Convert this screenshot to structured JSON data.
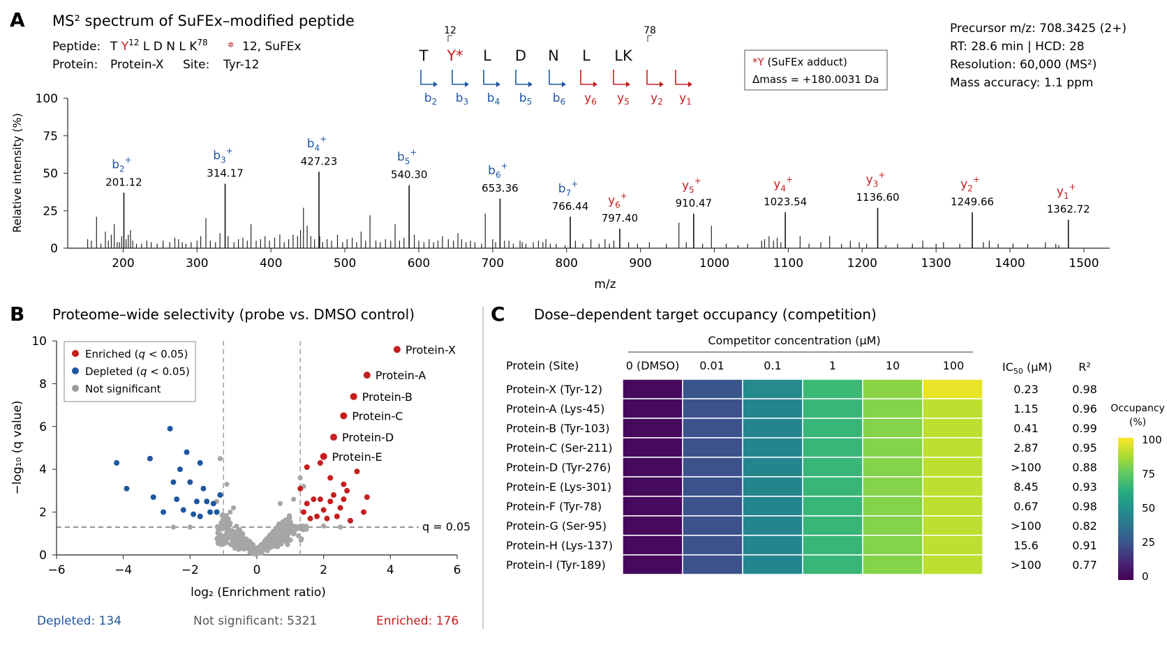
{
  "colors": {
    "blue": "#1f56a0",
    "red": "#c41e1e",
    "gray": "#a6a6a6",
    "black": "#111111"
  },
  "panelA": {
    "letter": "A",
    "title": "MS² spectrum of SuFEx–modified peptide",
    "peptide_label": "Peptide:",
    "peptide_pre": "T ",
    "peptide_mod": "Y",
    "peptide_mod_sup": "12",
    "peptide_post": " L D N L K",
    "peptide_k_sup": "78",
    "peptide_tail": "12,  SuFEx",
    "protein_label": "Protein:",
    "protein_value": "Protein-X",
    "site_label": "Site:",
    "site_value": "Tyr-12",
    "sequence": [
      "T",
      "Y*",
      "L",
      "D",
      "N",
      "L",
      "LK"
    ],
    "seq_mark_12": "12",
    "seq_mark_78": "78",
    "fragments": [
      {
        "ion": "b",
        "sub": "2",
        "type": "b"
      },
      {
        "ion": "b",
        "sub": "3",
        "type": "b"
      },
      {
        "ion": "b",
        "sub": "4",
        "type": "b"
      },
      {
        "ion": "b",
        "sub": "5",
        "type": "b"
      },
      {
        "ion": "b",
        "sub": "6",
        "type": "b"
      },
      {
        "ion": "y",
        "sub": "6",
        "type": "y"
      },
      {
        "ion": "y",
        "sub": "5",
        "type": "y"
      },
      {
        "ion": "y",
        "sub": "2",
        "type": "y"
      },
      {
        "ion": "y",
        "sub": "1",
        "type": "y"
      }
    ],
    "adduct_line1": "*Y (SuFEx adduct)",
    "adduct_line2": "Δmass = +180.0031 Da",
    "meta": {
      "precursor": "Precursor m/z: 708.3425 (2+)",
      "rt": "RT: 28.6 min   |   HCD: 28",
      "resolution": "Resolution: 60,000 (MS²)",
      "accuracy": "Mass accuracy:  1.1 ppm"
    }
  },
  "panelB": {
    "letter": "B",
    "title": "Proteome–wide selectivity (probe vs. DMSO control)",
    "legend": [
      "Enriched (q < 0.05)",
      "Depleted (q < 0.05)",
      "Not significant"
    ],
    "q_label": "q = 0.05",
    "depleted_count": "Depleted: 134",
    "ns_count": "Not significant: 5321",
    "enriched_count": "Enriched: 176"
  },
  "panelC": {
    "letter": "C",
    "title": "Dose–dependent target occupancy (competition)",
    "conc_title": "Competitor concentration (µM)",
    "col_header": "Protein (Site)",
    "concentrations": [
      "0 (DMSO)",
      "0.01",
      "0.1",
      "1",
      "10",
      "100"
    ],
    "ic50_header": "IC",
    "ic50_sub": "50",
    "ic50_unit": " (µM)",
    "r2_header": "R²",
    "colorbar_title1": "Occupancy",
    "colorbar_title2": "(%)",
    "colorbar_ticks": [
      "100",
      "75",
      "50",
      "25",
      "0"
    ]
  },
  "chart_data": [
    {
      "type": "bar",
      "title": "MS² spectrum of SuFEx–modified peptide",
      "xlabel": "m/z",
      "ylabel": "Relative intensity (%)",
      "xlim": [
        125,
        1535
      ],
      "ylim": [
        0,
        100
      ],
      "xticks": [
        200,
        300,
        400,
        500,
        600,
        700,
        800,
        900,
        1000,
        1100,
        1200,
        1300,
        1400,
        1500
      ],
      "yticks": [
        0,
        25,
        50,
        75,
        100
      ],
      "labeled_peaks": [
        {
          "ion": "b",
          "sub": "2",
          "type": "b",
          "label": "201.12",
          "x": 201,
          "y": 37
        },
        {
          "ion": "b",
          "sub": "3",
          "type": "b",
          "label": "314.17",
          "x": 338,
          "y": 43
        },
        {
          "ion": "b",
          "sub": "4",
          "type": "b",
          "label": "427.23",
          "x": 465,
          "y": 51
        },
        {
          "ion": "b",
          "sub": "5",
          "type": "b",
          "label": "540.30",
          "x": 587,
          "y": 42
        },
        {
          "ion": "b",
          "sub": "6",
          "type": "b",
          "label": "653.36",
          "x": 710,
          "y": 33
        },
        {
          "ion": "b",
          "sub": "7",
          "type": "b",
          "label": "766.44",
          "x": 805,
          "y": 21
        },
        {
          "ion": "y",
          "sub": "6",
          "type": "y",
          "label": "797.40",
          "x": 872,
          "y": 13
        },
        {
          "ion": "y",
          "sub": "5",
          "type": "y",
          "label": "910.47",
          "x": 972,
          "y": 23
        },
        {
          "ion": "y",
          "sub": "4",
          "type": "y",
          "label": "1023.54",
          "x": 1096,
          "y": 24
        },
        {
          "ion": "y",
          "sub": "3",
          "type": "y",
          "label": "1136.60",
          "x": 1221,
          "y": 27
        },
        {
          "ion": "y",
          "sub": "2",
          "type": "y",
          "label": "1249.66",
          "x": 1349,
          "y": 24
        },
        {
          "ion": "y",
          "sub": "1",
          "type": "y",
          "label": "1362.72",
          "x": 1479,
          "y": 19
        }
      ],
      "minor_peaks": [
        [
          152,
          6
        ],
        [
          157,
          5
        ],
        [
          164,
          21
        ],
        [
          170,
          3
        ],
        [
          176,
          11
        ],
        [
          180,
          5
        ],
        [
          184,
          9
        ],
        [
          188,
          16
        ],
        [
          192,
          4
        ],
        [
          195,
          4
        ],
        [
          198,
          8
        ],
        [
          204,
          6
        ],
        [
          207,
          9
        ],
        [
          210,
          12
        ],
        [
          213,
          5
        ],
        [
          218,
          3
        ],
        [
          225,
          3
        ],
        [
          232,
          5
        ],
        [
          238,
          4
        ],
        [
          246,
          3
        ],
        [
          254,
          5
        ],
        [
          263,
          4
        ],
        [
          270,
          7
        ],
        [
          275,
          6
        ],
        [
          280,
          4
        ],
        [
          285,
          3
        ],
        [
          292,
          4
        ],
        [
          300,
          5
        ],
        [
          305,
          8
        ],
        [
          312,
          20
        ],
        [
          318,
          5
        ],
        [
          325,
          4
        ],
        [
          331,
          10
        ],
        [
          342,
          8
        ],
        [
          350,
          4
        ],
        [
          356,
          6
        ],
        [
          362,
          7
        ],
        [
          368,
          5
        ],
        [
          373,
          16
        ],
        [
          380,
          5
        ],
        [
          386,
          6
        ],
        [
          392,
          8
        ],
        [
          398,
          5
        ],
        [
          405,
          7
        ],
        [
          412,
          9
        ],
        [
          418,
          4
        ],
        [
          424,
          6
        ],
        [
          430,
          9
        ],
        [
          436,
          8
        ],
        [
          440,
          12
        ],
        [
          444,
          27
        ],
        [
          449,
          15
        ],
        [
          454,
          8
        ],
        [
          459,
          6
        ],
        [
          466,
          8
        ],
        [
          470,
          4
        ],
        [
          476,
          6
        ],
        [
          482,
          5
        ],
        [
          490,
          9
        ],
        [
          497,
          4
        ],
        [
          503,
          6
        ],
        [
          510,
          7
        ],
        [
          516,
          4
        ],
        [
          522,
          11
        ],
        [
          528,
          5
        ],
        [
          534,
          22
        ],
        [
          542,
          5
        ],
        [
          548,
          4
        ],
        [
          555,
          6
        ],
        [
          562,
          5
        ],
        [
          568,
          16
        ],
        [
          574,
          5
        ],
        [
          580,
          7
        ],
        [
          594,
          9
        ],
        [
          600,
          5
        ],
        [
          607,
          4
        ],
        [
          614,
          6
        ],
        [
          620,
          4
        ],
        [
          626,
          5
        ],
        [
          632,
          8
        ],
        [
          640,
          6
        ],
        [
          647,
          5
        ],
        [
          653,
          10
        ],
        [
          658,
          6
        ],
        [
          664,
          4
        ],
        [
          670,
          5
        ],
        [
          676,
          4
        ],
        [
          685,
          3
        ],
        [
          690,
          23
        ],
        [
          700,
          6
        ],
        [
          704,
          4
        ],
        [
          716,
          5
        ],
        [
          722,
          5
        ],
        [
          728,
          3
        ],
        [
          737,
          5
        ],
        [
          740,
          4
        ],
        [
          745,
          3
        ],
        [
          755,
          4
        ],
        [
          762,
          5
        ],
        [
          768,
          4
        ],
        [
          772,
          6
        ],
        [
          778,
          3
        ],
        [
          786,
          3
        ],
        [
          798,
          2
        ],
        [
          812,
          5
        ],
        [
          822,
          3
        ],
        [
          833,
          6
        ],
        [
          844,
          3
        ],
        [
          852,
          6
        ],
        [
          858,
          3
        ],
        [
          864,
          5
        ],
        [
          884,
          4
        ],
        [
          896,
          3
        ],
        [
          912,
          4
        ],
        [
          935,
          3
        ],
        [
          952,
          17
        ],
        [
          962,
          4
        ],
        [
          984,
          3
        ],
        [
          996,
          15
        ],
        [
          1016,
          3
        ],
        [
          1032,
          2
        ],
        [
          1045,
          3
        ],
        [
          1064,
          5
        ],
        [
          1068,
          6
        ],
        [
          1074,
          8
        ],
        [
          1080,
          5
        ],
        [
          1085,
          7
        ],
        [
          1090,
          4
        ],
        [
          1116,
          8
        ],
        [
          1128,
          3
        ],
        [
          1144,
          4
        ],
        [
          1156,
          8
        ],
        [
          1172,
          3
        ],
        [
          1184,
          5
        ],
        [
          1196,
          4
        ],
        [
          1206,
          3
        ],
        [
          1232,
          2
        ],
        [
          1248,
          3
        ],
        [
          1268,
          3
        ],
        [
          1282,
          5
        ],
        [
          1300,
          3
        ],
        [
          1310,
          4
        ],
        [
          1332,
          3
        ],
        [
          1364,
          4
        ],
        [
          1372,
          5
        ],
        [
          1384,
          3
        ],
        [
          1404,
          3
        ],
        [
          1424,
          3
        ],
        [
          1448,
          4
        ],
        [
          1462,
          3
        ],
        [
          1466,
          2
        ]
      ]
    },
    {
      "type": "scatter",
      "title": "Proteome–wide selectivity (probe vs. DMSO control)",
      "xlabel": "log₂ (Enrichment ratio)",
      "ylabel": "−log₁₀ (q value)",
      "xlim": [
        -6,
        6
      ],
      "ylim": [
        0,
        10
      ],
      "xticks": [
        -6,
        -4,
        -2,
        0,
        2,
        4,
        6
      ],
      "yticks": [
        0,
        2,
        4,
        6,
        8,
        10
      ],
      "fc_thresholds": [
        -1,
        1.3
      ],
      "q_threshold_y": 1.3,
      "labeled_points": [
        {
          "name": "Protein-X",
          "x": 4.2,
          "y": 9.6
        },
        {
          "name": "Protein-A",
          "x": 3.3,
          "y": 8.4
        },
        {
          "name": "Protein-B",
          "x": 2.9,
          "y": 7.4
        },
        {
          "name": "Protein-C",
          "x": 2.6,
          "y": 6.5
        },
        {
          "name": "Protein-D",
          "x": 2.3,
          "y": 5.5
        },
        {
          "name": "Protein-E",
          "x": 2.0,
          "y": 4.6
        }
      ],
      "enriched": [
        [
          1.5,
          4.1
        ],
        [
          1.9,
          4.3
        ],
        [
          2.2,
          3.6
        ],
        [
          2.6,
          3.3
        ],
        [
          3.0,
          3.9
        ],
        [
          2.7,
          3.0
        ],
        [
          2.3,
          2.8
        ],
        [
          1.7,
          2.6
        ],
        [
          1.3,
          3.1
        ],
        [
          1.5,
          2.4
        ],
        [
          2.0,
          2.1
        ],
        [
          2.5,
          2.2
        ],
        [
          2.8,
          1.6
        ],
        [
          3.3,
          2.7
        ],
        [
          3.2,
          2.0
        ],
        [
          1.8,
          1.8
        ],
        [
          2.2,
          2.5
        ],
        [
          1.4,
          2.0
        ],
        [
          2.6,
          2.6
        ],
        [
          1.6,
          1.7
        ],
        [
          2.1,
          1.7
        ],
        [
          1.9,
          2.6
        ],
        [
          2.4,
          1.8
        ]
      ],
      "depleted": [
        [
          -4.2,
          4.3
        ],
        [
          -3.9,
          3.1
        ],
        [
          -3.2,
          4.5
        ],
        [
          -3.1,
          2.7
        ],
        [
          -2.6,
          5.9
        ],
        [
          -2.3,
          4.0
        ],
        [
          -2.1,
          4.8
        ],
        [
          -1.7,
          4.3
        ],
        [
          -2.5,
          3.4
        ],
        [
          -2.0,
          3.4
        ],
        [
          -1.6,
          3.1
        ],
        [
          -1.8,
          2.5
        ],
        [
          -1.5,
          2.5
        ],
        [
          -1.4,
          2.0
        ],
        [
          -1.2,
          2.0
        ],
        [
          -1.9,
          1.9
        ],
        [
          -2.2,
          2.1
        ],
        [
          -1.1,
          2.8
        ],
        [
          -2.8,
          2.0
        ],
        [
          -2.4,
          2.6
        ],
        [
          -1.3,
          2.4
        ],
        [
          -1.7,
          1.8
        ]
      ]
    },
    {
      "type": "heatmap",
      "title": "Dose–dependent target occupancy (competition)",
      "x": [
        "0 (DMSO)",
        "0.01",
        "0.1",
        "1",
        "10",
        "100"
      ],
      "xlabel": "Competitor concentration (µM)",
      "rows": [
        {
          "name": "Protein-X (Tyr-12)",
          "ic50": "0.23",
          "r2": "0.98",
          "values": [
            3,
            26,
            47,
            67,
            82,
            97
          ]
        },
        {
          "name": "Protein-A (Lys-45)",
          "ic50": "1.15",
          "r2": "0.96",
          "values": [
            3,
            25,
            45,
            66,
            81,
            90
          ]
        },
        {
          "name": "Protein-B (Tyr-103)",
          "ic50": "0.41",
          "r2": "0.99",
          "values": [
            3,
            25,
            45,
            66,
            81,
            90
          ]
        },
        {
          "name": "Protein-C (Ser-211)",
          "ic50": "2.87",
          "r2": "0.95",
          "values": [
            3,
            25,
            45,
            66,
            81,
            90
          ]
        },
        {
          "name": "Protein-D (Tyr-276)",
          "ic50": ">100",
          "r2": "0.88",
          "values": [
            3,
            25,
            45,
            66,
            81,
            90
          ]
        },
        {
          "name": "Protein-E (Lys-301)",
          "ic50": "8.45",
          "r2": "0.93",
          "values": [
            3,
            25,
            45,
            66,
            81,
            90
          ]
        },
        {
          "name": "Protein-F (Tyr-78)",
          "ic50": "0.67",
          "r2": "0.98",
          "values": [
            3,
            25,
            45,
            66,
            81,
            90
          ]
        },
        {
          "name": "Protein-G (Ser-95)",
          "ic50": ">100",
          "r2": "0.82",
          "values": [
            3,
            25,
            45,
            66,
            81,
            90
          ]
        },
        {
          "name": "Protein-H (Lys-137)",
          "ic50": "15.6",
          "r2": "0.91",
          "values": [
            3,
            25,
            45,
            66,
            81,
            90
          ]
        },
        {
          "name": "Protein-I (Tyr-189)",
          "ic50": ">100",
          "r2": "0.77",
          "values": [
            3,
            25,
            45,
            66,
            81,
            90
          ]
        }
      ],
      "colorbar": {
        "min": 0,
        "max": 100,
        "label": "Occupancy (%)"
      }
    }
  ]
}
